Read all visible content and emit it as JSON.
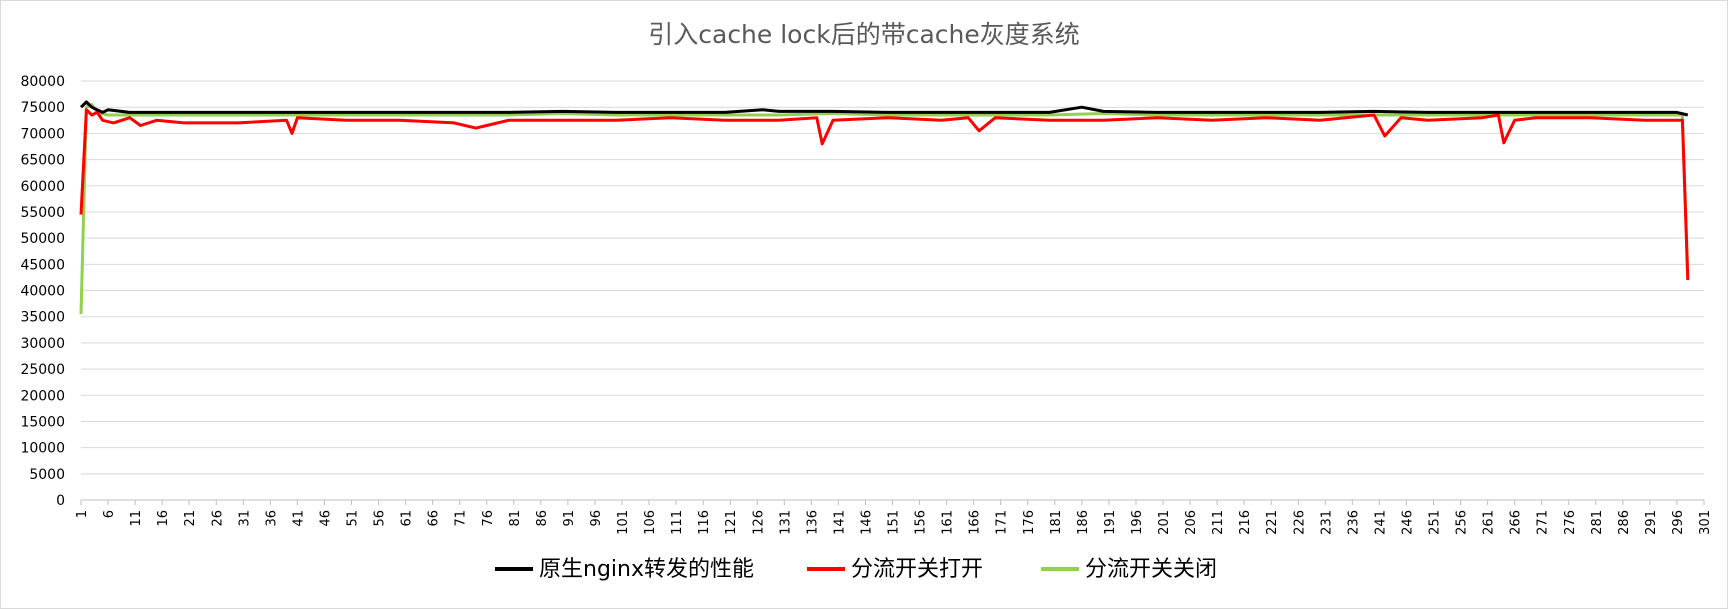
{
  "chart_data": {
    "type": "line",
    "title": "引入cache lock后的带cache灰度系统",
    "xlabel": "",
    "ylabel": "",
    "ylim": [
      0,
      80000
    ],
    "y_ticks": [
      0,
      5000,
      10000,
      15000,
      20000,
      25000,
      30000,
      35000,
      40000,
      45000,
      50000,
      55000,
      60000,
      65000,
      70000,
      75000,
      80000
    ],
    "x_range": [
      1,
      301
    ],
    "x_ticks": [
      1,
      6,
      11,
      16,
      21,
      26,
      31,
      36,
      41,
      46,
      51,
      56,
      61,
      66,
      71,
      76,
      81,
      86,
      91,
      96,
      101,
      106,
      111,
      116,
      121,
      126,
      131,
      136,
      141,
      146,
      151,
      156,
      161,
      166,
      171,
      176,
      181,
      186,
      191,
      196,
      201,
      206,
      211,
      216,
      221,
      226,
      231,
      236,
      241,
      246,
      251,
      256,
      261,
      266,
      271,
      276,
      281,
      286,
      291,
      296,
      301
    ],
    "grid": true,
    "legend_position": "bottom",
    "series": [
      {
        "name": "原生nginx转发的性能",
        "color": "#000000",
        "points": [
          [
            1,
            75000
          ],
          [
            2,
            76000
          ],
          [
            3,
            75000
          ],
          [
            4,
            74500
          ],
          [
            5,
            74000
          ],
          [
            6,
            74500
          ],
          [
            10,
            74000
          ],
          [
            20,
            74000
          ],
          [
            30,
            74000
          ],
          [
            40,
            74000
          ],
          [
            50,
            74000
          ],
          [
            60,
            74000
          ],
          [
            70,
            74000
          ],
          [
            80,
            74000
          ],
          [
            90,
            74200
          ],
          [
            100,
            74000
          ],
          [
            110,
            74000
          ],
          [
            120,
            74000
          ],
          [
            127,
            74500
          ],
          [
            130,
            74200
          ],
          [
            140,
            74200
          ],
          [
            150,
            74000
          ],
          [
            160,
            74000
          ],
          [
            170,
            74000
          ],
          [
            180,
            74000
          ],
          [
            186,
            75000
          ],
          [
            190,
            74200
          ],
          [
            200,
            74000
          ],
          [
            210,
            74000
          ],
          [
            220,
            74000
          ],
          [
            230,
            74000
          ],
          [
            240,
            74200
          ],
          [
            250,
            74000
          ],
          [
            260,
            74000
          ],
          [
            270,
            74000
          ],
          [
            280,
            74000
          ],
          [
            290,
            74000
          ],
          [
            296,
            74000
          ],
          [
            298,
            73500
          ]
        ]
      },
      {
        "name": "分流开关打开",
        "color": "#ff0000",
        "points": [
          [
            1,
            54500
          ],
          [
            2,
            74500
          ],
          [
            3,
            73500
          ],
          [
            4,
            74000
          ],
          [
            5,
            72500
          ],
          [
            7,
            72000
          ],
          [
            10,
            73000
          ],
          [
            12,
            71500
          ],
          [
            15,
            72500
          ],
          [
            20,
            72000
          ],
          [
            30,
            72000
          ],
          [
            39,
            72500
          ],
          [
            40,
            70000
          ],
          [
            41,
            73000
          ],
          [
            50,
            72500
          ],
          [
            60,
            72500
          ],
          [
            70,
            72000
          ],
          [
            74,
            71000
          ],
          [
            76,
            71500
          ],
          [
            80,
            72500
          ],
          [
            90,
            72500
          ],
          [
            100,
            72500
          ],
          [
            110,
            73000
          ],
          [
            120,
            72500
          ],
          [
            130,
            72500
          ],
          [
            137,
            73000
          ],
          [
            138,
            68000
          ],
          [
            140,
            72500
          ],
          [
            150,
            73000
          ],
          [
            160,
            72500
          ],
          [
            165,
            73000
          ],
          [
            167,
            70500
          ],
          [
            170,
            73000
          ],
          [
            180,
            72500
          ],
          [
            190,
            72500
          ],
          [
            200,
            73000
          ],
          [
            210,
            72500
          ],
          [
            220,
            73000
          ],
          [
            230,
            72500
          ],
          [
            240,
            73500
          ],
          [
            242,
            69500
          ],
          [
            245,
            73000
          ],
          [
            250,
            72500
          ],
          [
            260,
            73000
          ],
          [
            263,
            73500
          ],
          [
            264,
            68200
          ],
          [
            266,
            72500
          ],
          [
            270,
            73000
          ],
          [
            280,
            73000
          ],
          [
            290,
            72500
          ],
          [
            297,
            72500
          ],
          [
            298,
            42000
          ]
        ]
      },
      {
        "name": "分流开关关闭",
        "color": "#92d050",
        "points": [
          [
            1,
            35500
          ],
          [
            2,
            75000
          ],
          [
            3,
            75500
          ],
          [
            4,
            74000
          ],
          [
            6,
            73500
          ],
          [
            10,
            73500
          ],
          [
            20,
            73500
          ],
          [
            30,
            73500
          ],
          [
            40,
            73500
          ],
          [
            50,
            73500
          ],
          [
            60,
            73500
          ],
          [
            70,
            73500
          ],
          [
            80,
            73500
          ],
          [
            90,
            73800
          ],
          [
            100,
            73500
          ],
          [
            110,
            73500
          ],
          [
            120,
            73500
          ],
          [
            130,
            73500
          ],
          [
            140,
            73800
          ],
          [
            150,
            73500
          ],
          [
            160,
            73500
          ],
          [
            170,
            73500
          ],
          [
            180,
            73500
          ],
          [
            190,
            73800
          ],
          [
            200,
            73500
          ],
          [
            210,
            73500
          ],
          [
            220,
            73500
          ],
          [
            230,
            73500
          ],
          [
            240,
            73500
          ],
          [
            250,
            73500
          ],
          [
            260,
            73500
          ],
          [
            270,
            73500
          ],
          [
            280,
            73500
          ],
          [
            290,
            73500
          ],
          [
            297,
            73500
          ],
          [
            298,
            43000
          ]
        ]
      }
    ]
  }
}
